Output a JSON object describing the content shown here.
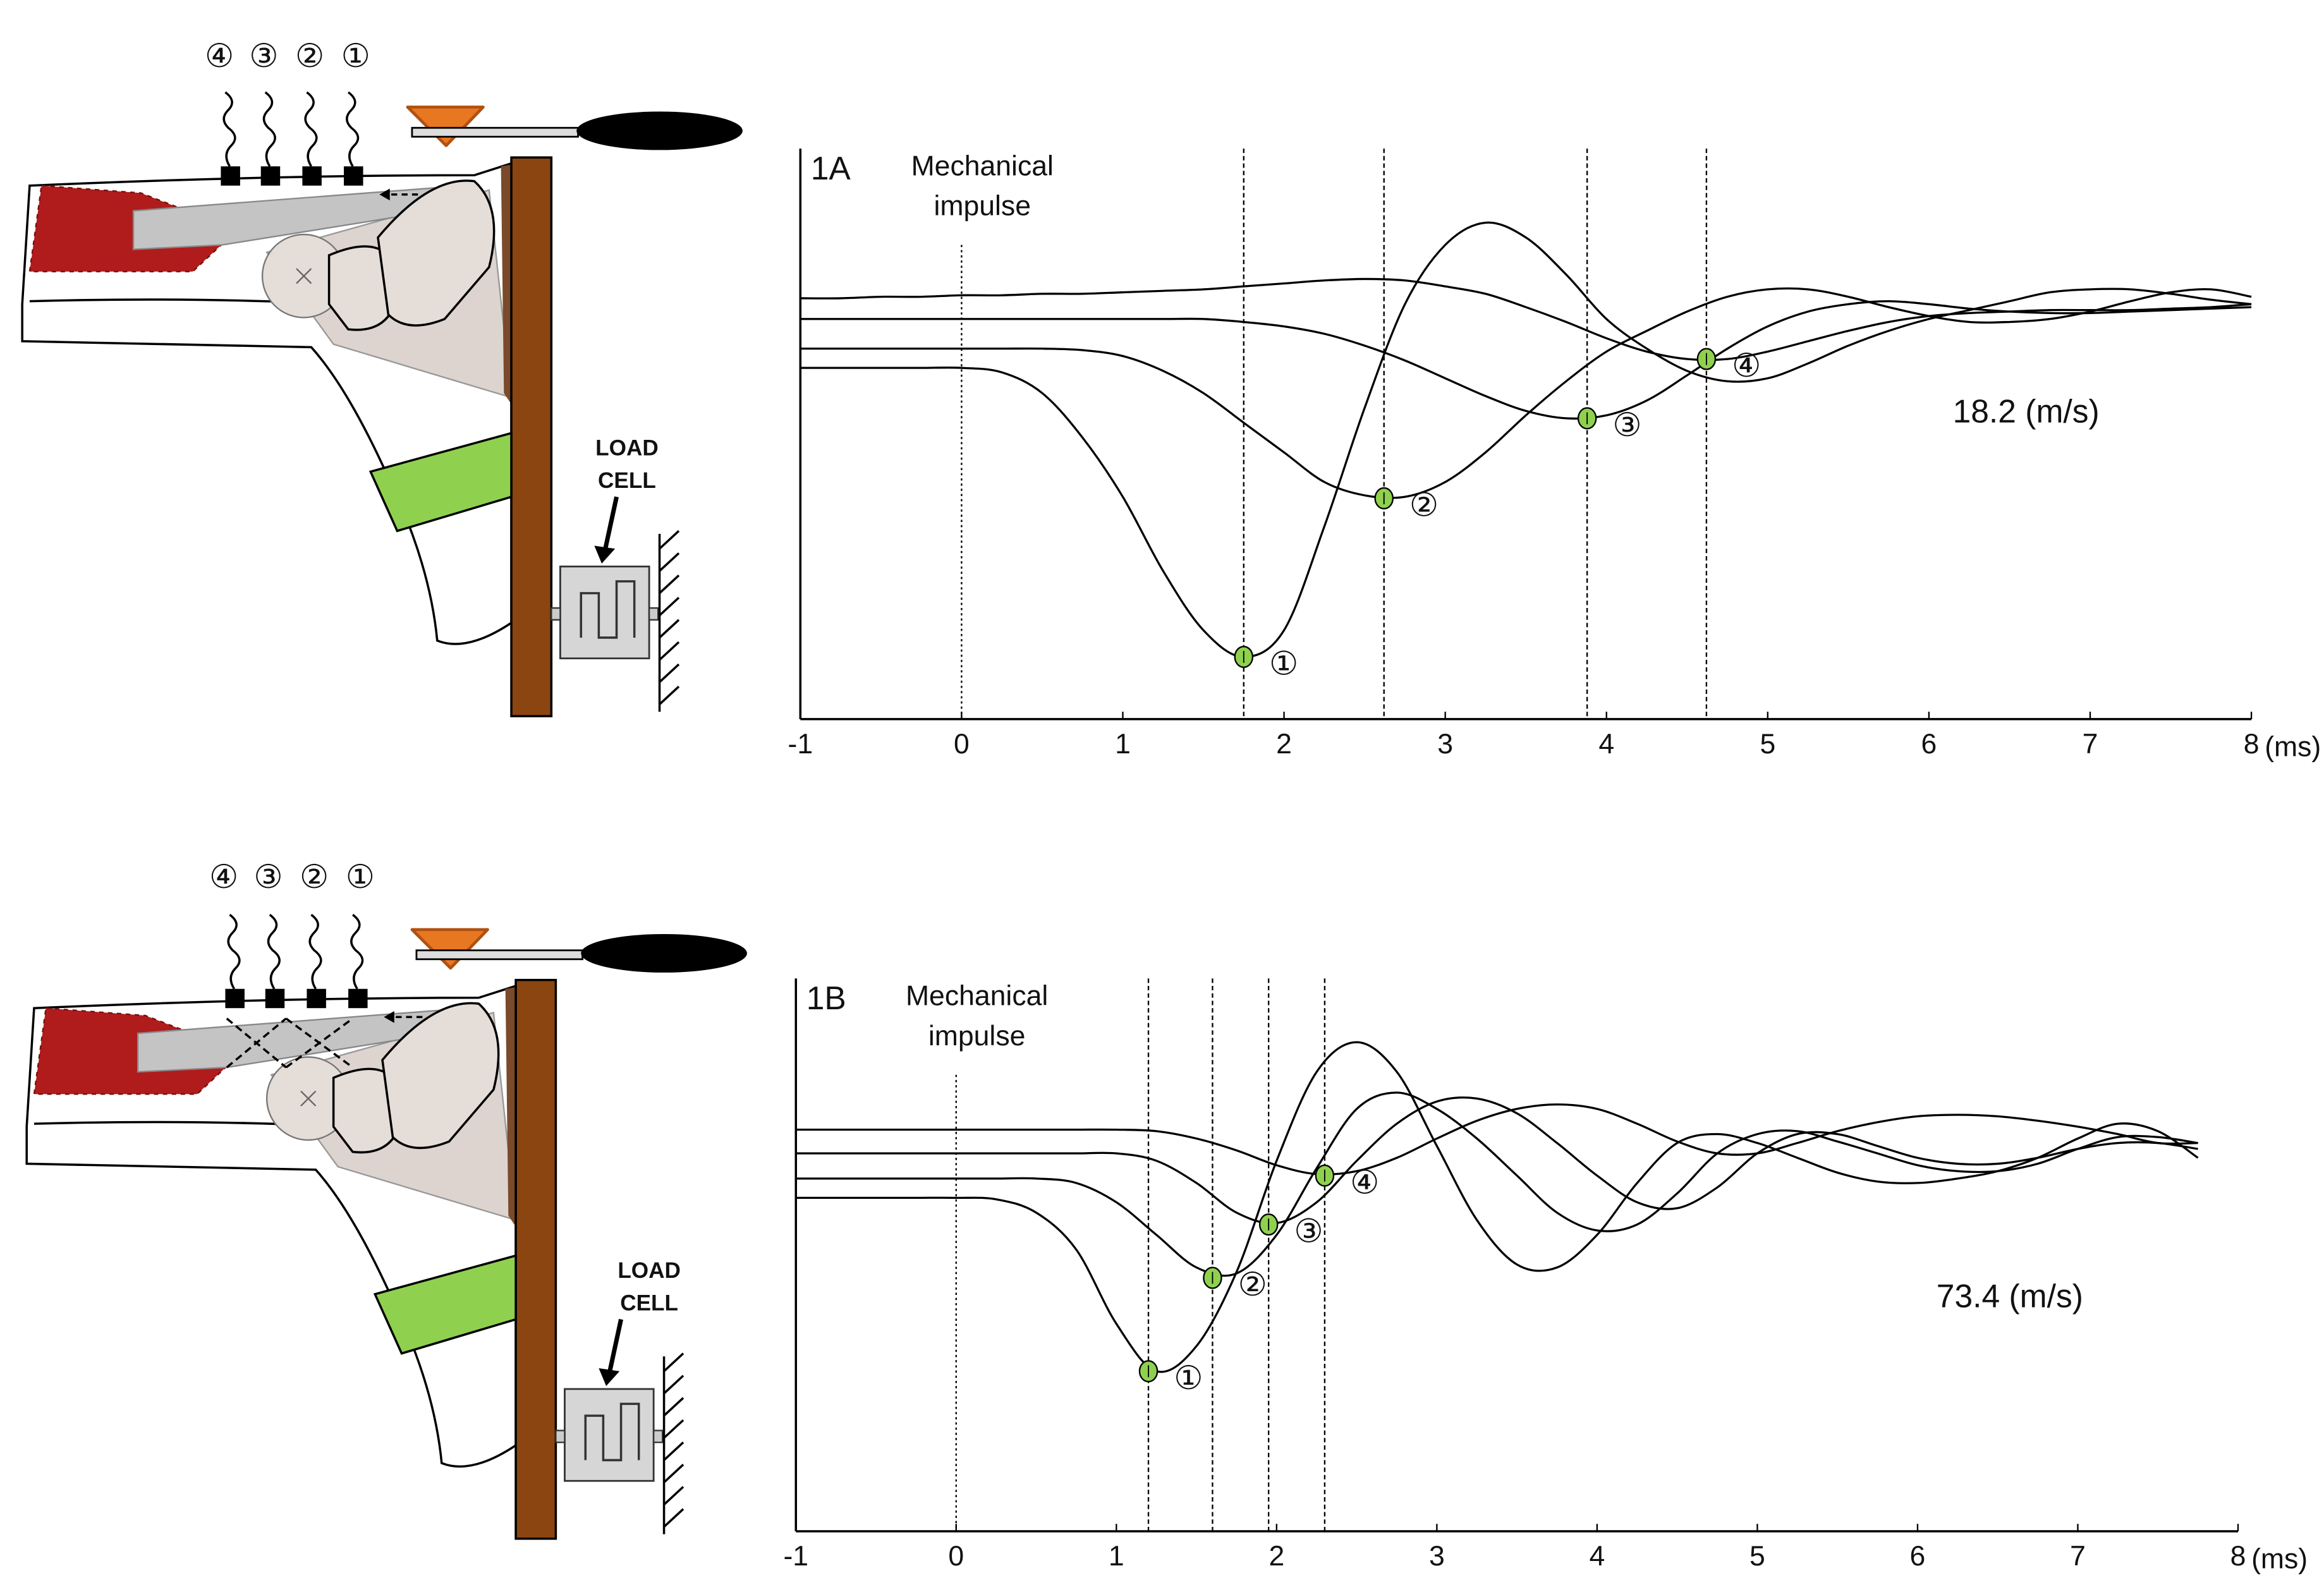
{
  "chart_data": [
    {
      "type": "line",
      "panel": "1A",
      "annotation": {
        "lines": [
          "Mechanical",
          "impulse"
        ],
        "x": 0
      },
      "velocity_label": "18.2 (m/s)",
      "x_label": "(ms)",
      "x": [
        -1,
        -0.75,
        -0.5,
        -0.25,
        0,
        0.25,
        0.5,
        0.75,
        1,
        1.25,
        1.5,
        1.75,
        2,
        2.25,
        2.5,
        2.75,
        3,
        3.25,
        3.5,
        3.75,
        4,
        4.25,
        4.5,
        4.75,
        5,
        5.25,
        5.5,
        5.75,
        6,
        6.25,
        6.5,
        6.75,
        7,
        7.25,
        7.5,
        7.75,
        8
      ],
      "series": [
        {
          "color": "#000000",
          "values": [
            237,
            237,
            237,
            237,
            237,
            234,
            220,
            190,
            150,
            100,
            60,
            42,
            60,
            130,
            210,
            280,
            320,
            335,
            325,
            300,
            270,
            250,
            235,
            228,
            230,
            240,
            252,
            262,
            270,
            276,
            282,
            288,
            290,
            290,
            287,
            283,
            280
          ]
        },
        {
          "color": "#000000",
          "values": [
            250,
            250,
            250,
            250,
            250,
            250,
            250,
            249,
            245,
            235,
            220,
            200,
            180,
            160,
            151,
            150,
            160,
            180,
            205,
            228,
            248,
            262,
            275,
            285,
            290,
            290,
            285,
            278,
            272,
            268,
            268,
            270,
            275,
            282,
            288,
            290,
            285
          ]
        },
        {
          "color": "#000000",
          "values": [
            270,
            270,
            270,
            270,
            270,
            270,
            270,
            270,
            270,
            270,
            270,
            268,
            265,
            260,
            252,
            242,
            230,
            218,
            208,
            203,
            205,
            215,
            232,
            250,
            265,
            275,
            280,
            282,
            280,
            277,
            275,
            274,
            274,
            275,
            276,
            277,
            278
          ]
        },
        {
          "color": "#000000",
          "values": [
            284,
            284,
            285,
            285,
            286,
            286,
            287,
            287,
            288,
            289,
            290,
            292,
            294,
            296,
            297,
            296,
            292,
            287,
            278,
            268,
            257,
            248,
            243,
            243,
            248,
            255,
            262,
            268,
            272,
            274,
            275,
            276,
            276,
            276,
            277,
            278,
            280
          ]
        }
      ],
      "markers": [
        {
          "x": 1.75,
          "y": 42,
          "label": "①"
        },
        {
          "x": 2.62,
          "y": 149,
          "label": "②"
        },
        {
          "x": 3.88,
          "y": 203,
          "label": "③"
        },
        {
          "x": 4.62,
          "y": 243,
          "label": "④"
        }
      ],
      "marker_color": "#8fd14f",
      "xlim": [
        -1,
        8
      ],
      "xticks": [
        -1,
        0,
        1,
        2,
        3,
        4,
        5,
        6,
        7,
        8
      ],
      "ylim": [
        0,
        385
      ]
    },
    {
      "type": "line",
      "panel": "1B",
      "annotation": {
        "lines": [
          "Mechanical",
          "impulse"
        ],
        "x": 0
      },
      "velocity_label": "73.4 (m/s)",
      "x_label": "(ms)",
      "x": [
        -1,
        -0.75,
        -0.5,
        -0.25,
        0,
        0.25,
        0.5,
        0.75,
        1,
        1.25,
        1.5,
        1.75,
        2,
        2.25,
        2.5,
        2.75,
        3,
        3.25,
        3.5,
        3.75,
        4,
        4.25,
        4.5,
        4.75,
        5,
        5.25,
        5.5,
        5.75,
        6,
        6.25,
        6.5,
        6.75,
        7,
        7.25,
        7.5,
        7.75,
        8
      ],
      "series": [
        {
          "color": "#000000",
          "values": [
            225,
            225,
            225,
            225,
            225,
            224,
            215,
            190,
            140,
            108,
            125,
            175,
            250,
            310,
            330,
            310,
            260,
            210,
            180,
            178,
            200,
            235,
            262,
            268,
            262,
            252,
            242,
            236,
            235,
            238,
            243,
            252,
            265,
            275,
            270,
            252,
            null
          ]
        },
        {
          "color": "#000000",
          "values": [
            238,
            238,
            238,
            238,
            238,
            238,
            238,
            235,
            222,
            200,
            178,
            174,
            200,
            245,
            285,
            296,
            285,
            265,
            240,
            215,
            203,
            207,
            228,
            255,
            268,
            270,
            263,
            255,
            247,
            243,
            243,
            248,
            258,
            266,
            266,
            262,
            null
          ]
        },
        {
          "color": "#000000",
          "values": [
            255,
            255,
            255,
            255,
            255,
            255,
            255,
            255,
            255,
            250,
            235,
            215,
            208,
            222,
            250,
            275,
            290,
            292,
            282,
            262,
            240,
            222,
            218,
            232,
            255,
            268,
            268,
            260,
            252,
            248,
            248,
            252,
            258,
            262,
            262,
            258,
            null
          ]
        },
        {
          "color": "#000000",
          "values": [
            271,
            271,
            271,
            271,
            271,
            271,
            271,
            271,
            271,
            270,
            265,
            257,
            247,
            241,
            243,
            252,
            265,
            277,
            285,
            288,
            285,
            275,
            263,
            255,
            255,
            262,
            270,
            276,
            280,
            281,
            280,
            277,
            273,
            268,
            262,
            262,
            null
          ]
        }
      ],
      "markers": [
        {
          "x": 1.2,
          "y": 108,
          "label": "①"
        },
        {
          "x": 1.6,
          "y": 171,
          "label": "②"
        },
        {
          "x": 1.95,
          "y": 207,
          "label": "③"
        },
        {
          "x": 2.3,
          "y": 240,
          "label": "④"
        }
      ],
      "marker_color": "#8fd14f",
      "xlim": [
        -1,
        8
      ],
      "xticks": [
        -1,
        0,
        1,
        2,
        3,
        4,
        5,
        6,
        7,
        8
      ],
      "ylim": [
        0,
        373
      ]
    }
  ],
  "diagrams": [
    {
      "sensor_labels": [
        "④",
        "③",
        "②",
        "①"
      ],
      "load_cell": [
        "LOAD",
        "CELL"
      ]
    },
    {
      "sensor_labels": [
        "④",
        "③",
        "②",
        "①"
      ],
      "load_cell": [
        "LOAD",
        "CELL"
      ]
    }
  ]
}
